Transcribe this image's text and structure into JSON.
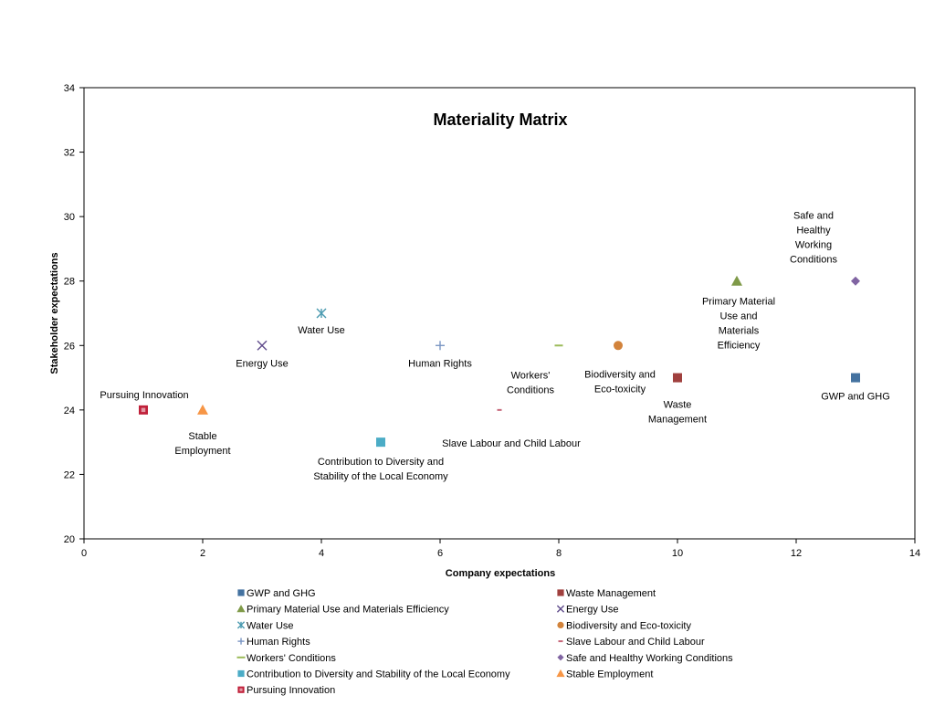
{
  "chart_data": {
    "type": "scatter",
    "title": "Materiality Matrix",
    "xlabel": "Company expectations",
    "ylabel": "Stakeholder expectations",
    "xlim": [
      0,
      14
    ],
    "ylim": [
      20,
      34
    ],
    "xticks": [
      0,
      2,
      4,
      6,
      8,
      10,
      12,
      14
    ],
    "yticks": [
      20,
      22,
      24,
      26,
      28,
      30,
      32,
      34
    ],
    "grid": false,
    "legend_position": "bottom",
    "series": [
      {
        "name": "GWP and GHG",
        "x": 13,
        "y": 25,
        "marker": "square",
        "color": "#4472a0",
        "label_lines": [
          "GWP and GHG"
        ]
      },
      {
        "name": "Waste Management",
        "x": 10,
        "y": 25,
        "marker": "square",
        "color": "#a0403e",
        "label_lines": [
          "Waste",
          "Management"
        ]
      },
      {
        "name": "Primary Material Use and Materials Efficiency",
        "x": 11,
        "y": 28,
        "marker": "triangle",
        "color": "#7f9a48",
        "label_lines": [
          "Primary Material",
          "Use and",
          "Materials",
          "Efficiency"
        ]
      },
      {
        "name": "Energy Use",
        "x": 3,
        "y": 26,
        "marker": "x",
        "color": "#5f4b8b",
        "label_lines": [
          "Energy Use"
        ]
      },
      {
        "name": "Water Use",
        "x": 4,
        "y": 27,
        "marker": "star",
        "color": "#4a9ab0",
        "label_lines": [
          "Water Use"
        ]
      },
      {
        "name": "Biodiversity and Eco-toxicity",
        "x": 9,
        "y": 26,
        "marker": "circle",
        "color": "#d2833b",
        "label_lines": [
          "Biodiversity and",
          "Eco-toxicity"
        ]
      },
      {
        "name": "Human Rights",
        "x": 6,
        "y": 26,
        "marker": "plus",
        "color": "#7b96c4",
        "label_lines": [
          "Human Rights"
        ]
      },
      {
        "name": "Slave Labour and Child Labour",
        "x": 7,
        "y": 24,
        "marker": "dash",
        "color": "#c6677a",
        "label_lines": [
          "Slave Labour and Child Labour"
        ]
      },
      {
        "name": "Workers' Conditions",
        "x": 8,
        "y": 26,
        "marker": "longdash",
        "color": "#9bbb59",
        "label_lines": [
          "Workers'",
          "Conditions"
        ]
      },
      {
        "name": "Safe and Healthy Working Conditions",
        "x": 13,
        "y": 28,
        "marker": "diamond",
        "color": "#8064a2",
        "label_lines": [
          "Safe and",
          "Healthy",
          "Working",
          "Conditions"
        ]
      },
      {
        "name": "Contribution to Diversity and Stability of the Local Economy",
        "x": 5,
        "y": 23,
        "marker": "square",
        "color": "#4bacc6",
        "label_lines": [
          "Contribution to Diversity and",
          "Stability of the Local Economy"
        ]
      },
      {
        "name": "Stable Employment",
        "x": 2,
        "y": 24,
        "marker": "triangle",
        "color": "#f79646",
        "label_lines": [
          "Stable",
          "Employment"
        ]
      },
      {
        "name": "Pursuing Innovation",
        "x": 1,
        "y": 24,
        "marker": "square-dot",
        "color": "#c0203a",
        "label_lines": [
          "Pursuing Innovation"
        ]
      }
    ]
  }
}
